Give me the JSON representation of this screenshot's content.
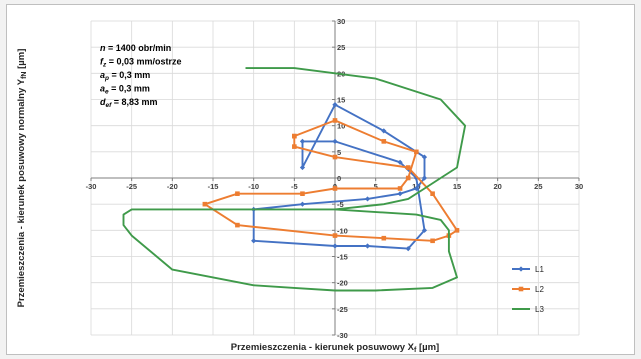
{
  "chart_data": {
    "type": "line",
    "xlabel": "Przemieszczenia - kierunek posuwowy X",
    "xlabel_sub": "f",
    "xlabel_unit": " [µm]",
    "ylabel": "Przemieszczenia - kierunek posuwowy normalny Y",
    "ylabel_sub": "fN",
    "ylabel_unit": " [µm]",
    "xlim": [
      -30,
      30
    ],
    "ylim": [
      -30,
      30
    ],
    "xticks": [
      -30,
      -25,
      -20,
      -15,
      -10,
      -5,
      0,
      5,
      10,
      15,
      20,
      25,
      30
    ],
    "yticks": [
      -30,
      -25,
      -20,
      -15,
      -10,
      -5,
      0,
      5,
      10,
      15,
      20,
      25,
      30
    ],
    "grid": true,
    "legend_position": "bottom-right",
    "annotations": [
      {
        "sym": "n",
        "sub": "",
        "rest": " = 1400 obr/min"
      },
      {
        "sym": "f",
        "sub": "z",
        "rest": " = 0,03 mm/ostrze"
      },
      {
        "sym": "a",
        "sub": "p",
        "rest": " = 0,3 mm"
      },
      {
        "sym": "a",
        "sub": "e",
        "rest": " = 0,3 mm"
      },
      {
        "sym": "d",
        "sub": "ef",
        "rest": " = 8,83 mm"
      }
    ],
    "series": [
      {
        "name": "L1",
        "color": "#4472c4",
        "marker": "diamond",
        "points": [
          [
            0,
            14
          ],
          [
            6,
            9
          ],
          [
            11,
            4
          ],
          [
            11,
            0
          ],
          [
            10,
            -2
          ],
          [
            8,
            -3
          ],
          [
            4,
            -4
          ],
          [
            -4,
            -5
          ],
          [
            -10,
            -6
          ],
          [
            -10,
            -12
          ],
          [
            0,
            -13
          ],
          [
            4,
            -13
          ],
          [
            9,
            -13.5
          ],
          [
            11,
            -10
          ],
          [
            10,
            0
          ],
          [
            8,
            3
          ],
          [
            0,
            7
          ],
          [
            -4,
            7
          ],
          [
            -4,
            2
          ],
          [
            0,
            14
          ]
        ]
      },
      {
        "name": "L2",
        "color": "#ed7d31",
        "marker": "square",
        "points": [
          [
            -5,
            8
          ],
          [
            0,
            11
          ],
          [
            6,
            7
          ],
          [
            10,
            5
          ],
          [
            9,
            0
          ],
          [
            8,
            -2
          ],
          [
            0,
            -2
          ],
          [
            -4,
            -3
          ],
          [
            -12,
            -3
          ],
          [
            -16,
            -5
          ],
          [
            -12,
            -9
          ],
          [
            0,
            -11
          ],
          [
            6,
            -11.5
          ],
          [
            12,
            -12
          ],
          [
            14,
            -11
          ],
          [
            15,
            -10
          ],
          [
            12,
            -3
          ],
          [
            9,
            2
          ],
          [
            0,
            4
          ],
          [
            -5,
            6
          ],
          [
            -5,
            8
          ]
        ]
      },
      {
        "name": "L3",
        "color": "#3f9a4a",
        "marker": "line",
        "points": [
          [
            -11,
            21
          ],
          [
            -5,
            21
          ],
          [
            5,
            19
          ],
          [
            13,
            15
          ],
          [
            16,
            10
          ],
          [
            15,
            2
          ],
          [
            13,
            0
          ],
          [
            11,
            -2
          ],
          [
            9,
            -4
          ],
          [
            6,
            -5
          ],
          [
            0,
            -6
          ],
          [
            -25,
            -6
          ],
          [
            -26,
            -7
          ],
          [
            -26,
            -9
          ],
          [
            -25,
            -11
          ],
          [
            -20,
            -17.5
          ],
          [
            -10,
            -20.5
          ],
          [
            -5,
            -21
          ],
          [
            0,
            -21.5
          ],
          [
            5,
            -21.5
          ],
          [
            12,
            -21
          ],
          [
            15,
            -19
          ],
          [
            14,
            -14
          ],
          [
            14,
            -10
          ],
          [
            13,
            -8
          ],
          [
            10,
            -7
          ],
          [
            0,
            -6
          ]
        ]
      }
    ]
  }
}
